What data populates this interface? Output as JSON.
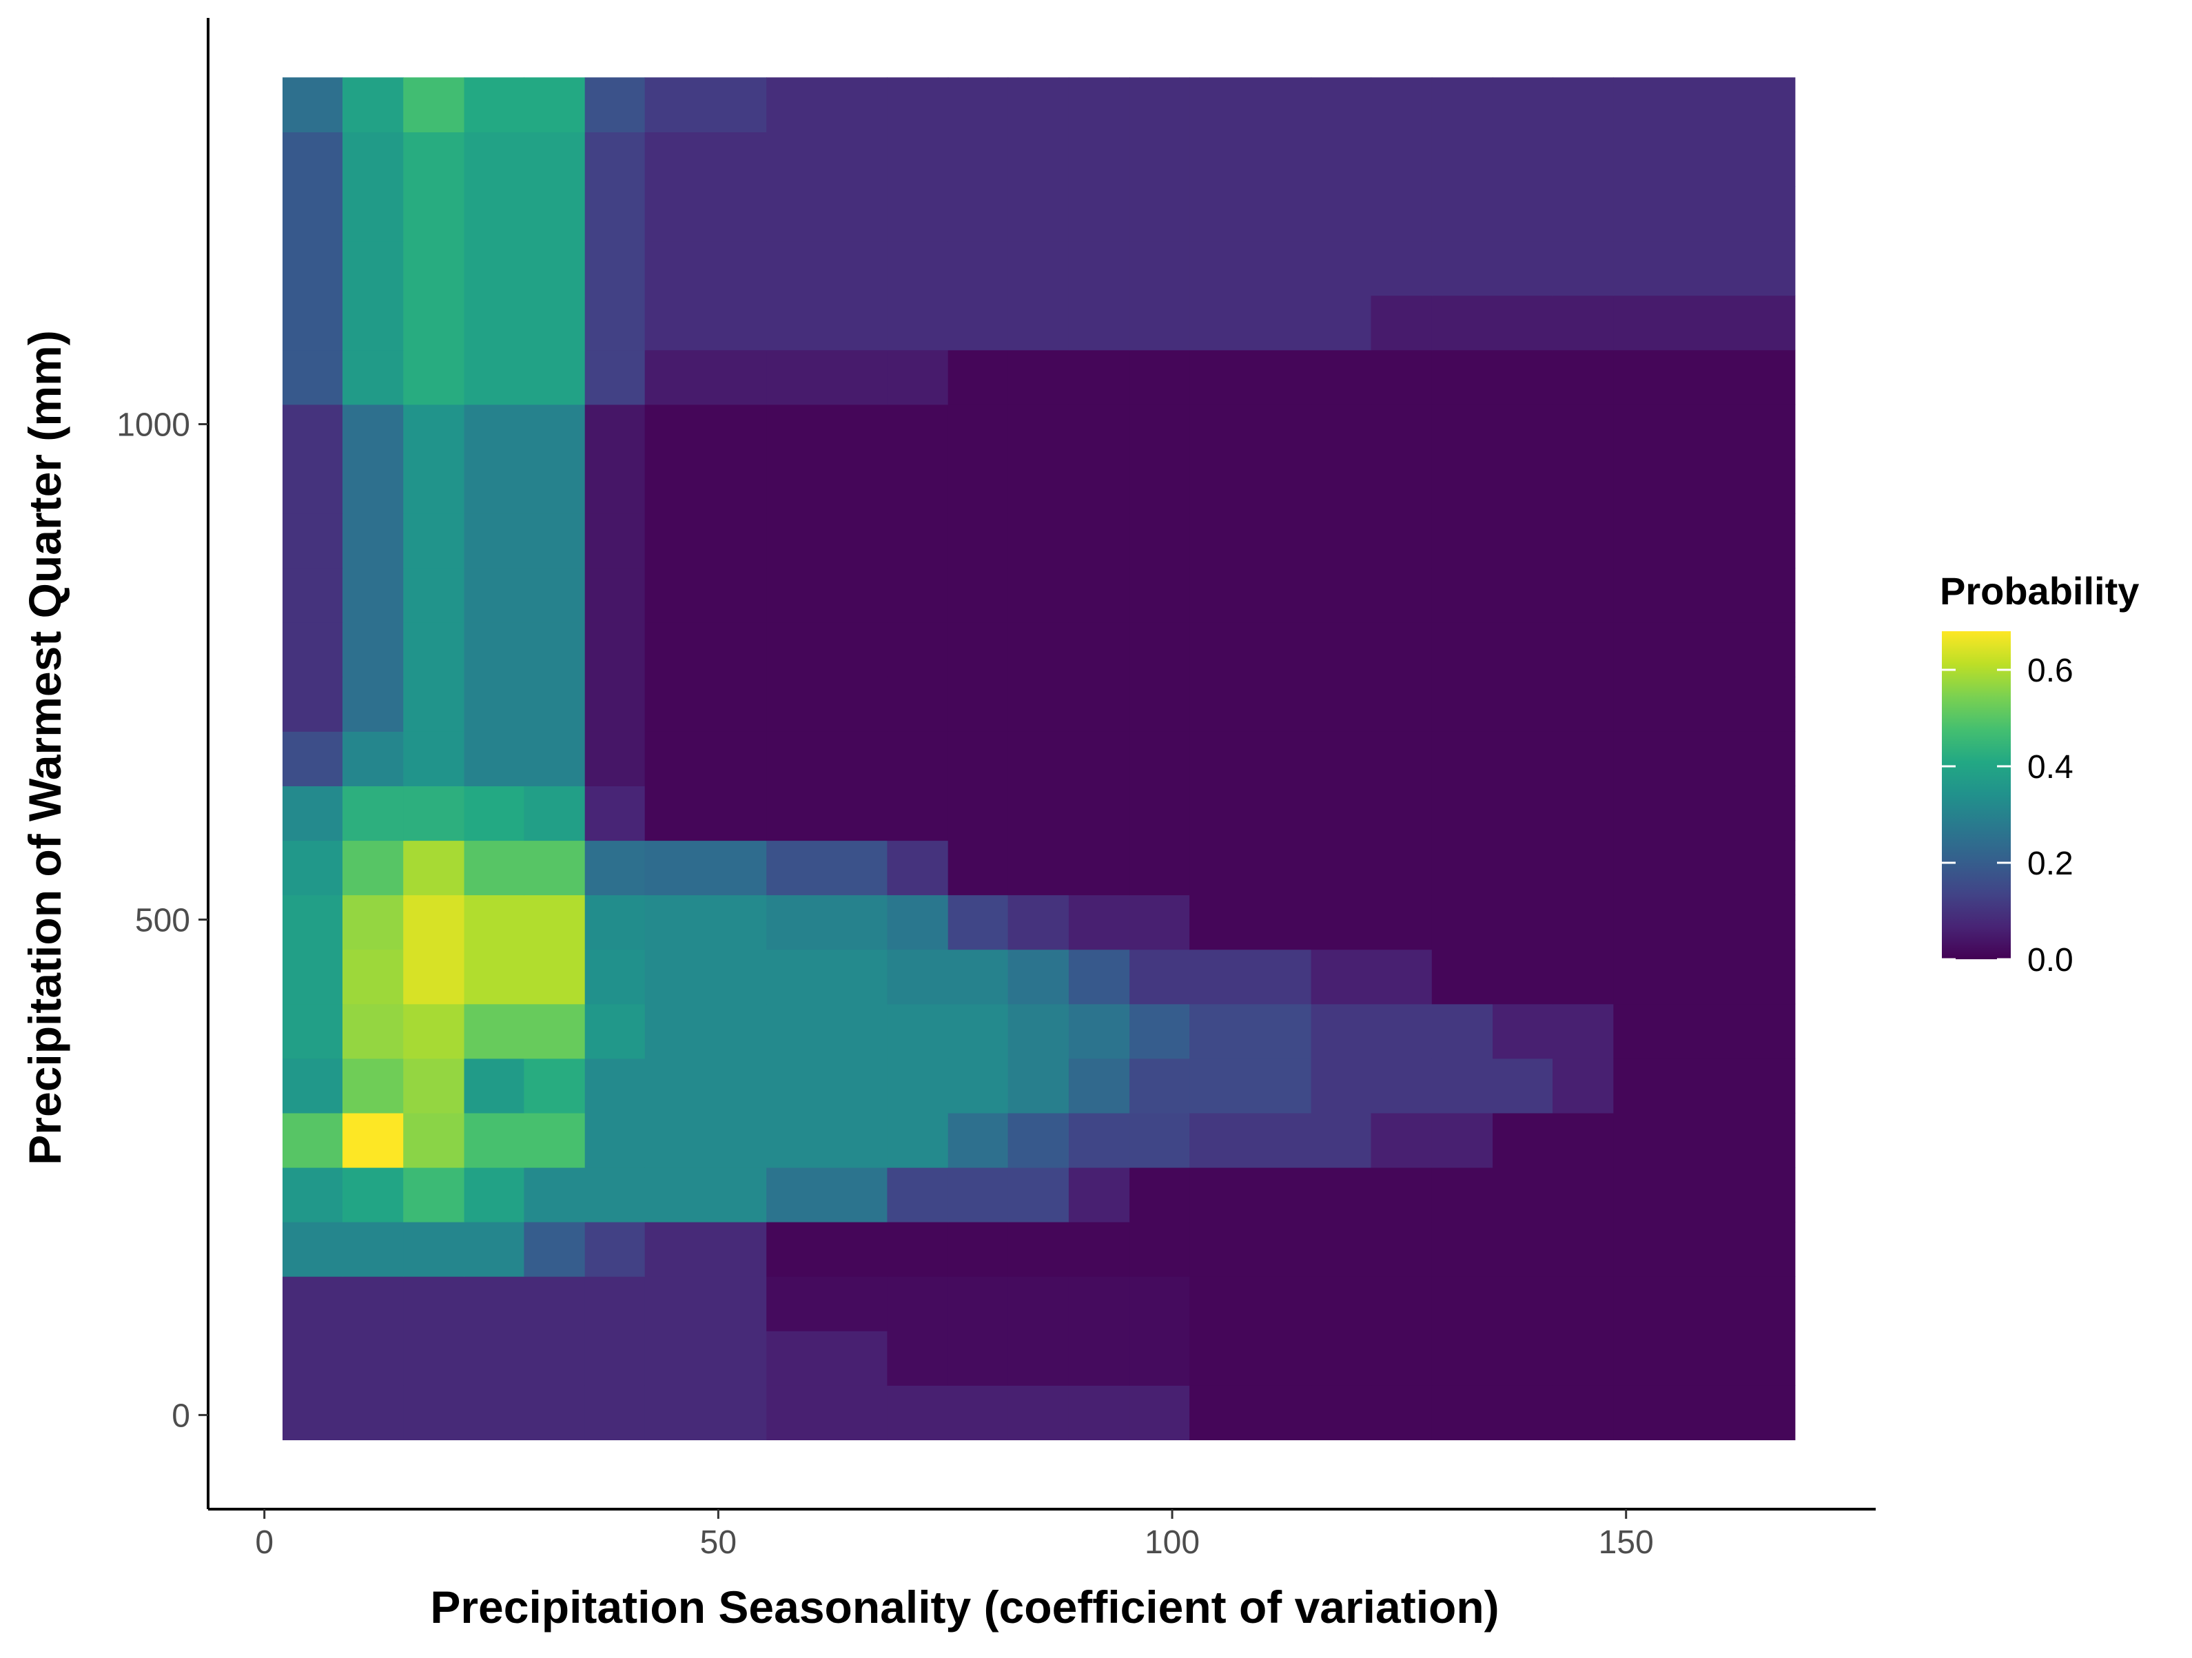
{
  "chart_data": {
    "type": "heatmap",
    "title": "",
    "xlabel": "Precipitation Seasonality (coefficient of variation)",
    "ylabel": "Precipitation of Warmest Quarter (mm)",
    "x_ticks": [
      0,
      50,
      100,
      150
    ],
    "y_ticks": [
      0,
      500,
      1000
    ],
    "xlim": [
      -6.2,
      177.5
    ],
    "ylim": [
      -95,
      1410
    ],
    "grid": false,
    "colorscale": "viridis",
    "legend": {
      "title": "Probability",
      "ticks": [
        0.0,
        0.2,
        0.4,
        0.6
      ],
      "tick_labels": [
        "0.0",
        "0.2",
        "0.4",
        "0.6"
      ],
      "min": 0.0,
      "max": 0.68,
      "position": "right"
    },
    "x_edges": [
      2.0,
      8.6,
      15.3,
      22.0,
      28.6,
      35.3,
      41.9,
      55.3,
      68.6,
      75.3,
      81.9,
      88.6,
      95.3,
      101.9,
      115.3,
      121.9,
      128.6,
      135.3,
      141.9,
      148.6,
      168.6
    ],
    "y_edges": [
      -25,
      30,
      85,
      140,
      195,
      250,
      305,
      360,
      415,
      470,
      525,
      580,
      635,
      690,
      745,
      800,
      855,
      910,
      965,
      1020,
      1075,
      1130,
      1185,
      1240,
      1295,
      1350
    ],
    "values": [
      [
        0.08,
        0.08,
        0.08,
        0.08,
        0.08,
        0.08,
        0.08,
        0.06,
        0.06,
        0.06,
        0.06,
        0.06,
        0.06,
        0.01,
        0.01,
        0.01,
        0.01,
        0.01,
        0.01,
        0.01
      ],
      [
        0.08,
        0.08,
        0.08,
        0.08,
        0.08,
        0.08,
        0.08,
        0.06,
        0.02,
        0.02,
        0.02,
        0.02,
        0.02,
        0.01,
        0.01,
        0.01,
        0.01,
        0.01,
        0.01,
        0.01
      ],
      [
        0.08,
        0.08,
        0.08,
        0.08,
        0.08,
        0.08,
        0.08,
        0.02,
        0.02,
        0.02,
        0.02,
        0.02,
        0.02,
        0.01,
        0.01,
        0.01,
        0.01,
        0.01,
        0.01,
        0.01
      ],
      [
        0.31,
        0.31,
        0.31,
        0.31,
        0.2,
        0.13,
        0.08,
        0.01,
        0.01,
        0.01,
        0.01,
        0.01,
        0.01,
        0.01,
        0.01,
        0.01,
        0.01,
        0.01,
        0.01,
        0.01
      ],
      [
        0.36,
        0.4,
        0.46,
        0.39,
        0.32,
        0.32,
        0.32,
        0.26,
        0.14,
        0.14,
        0.14,
        0.06,
        0.01,
        0.01,
        0.01,
        0.01,
        0.01,
        0.01,
        0.01,
        0.01
      ],
      [
        0.5,
        0.68,
        0.56,
        0.48,
        0.48,
        0.32,
        0.32,
        0.32,
        0.32,
        0.25,
        0.19,
        0.14,
        0.14,
        0.11,
        0.11,
        0.06,
        0.06,
        0.01,
        0.01,
        0.01
      ],
      [
        0.36,
        0.53,
        0.57,
        0.37,
        0.42,
        0.32,
        0.32,
        0.32,
        0.32,
        0.32,
        0.29,
        0.23,
        0.15,
        0.15,
        0.11,
        0.11,
        0.11,
        0.11,
        0.06,
        0.01
      ],
      [
        0.38,
        0.57,
        0.59,
        0.52,
        0.52,
        0.36,
        0.32,
        0.32,
        0.32,
        0.32,
        0.29,
        0.26,
        0.2,
        0.15,
        0.11,
        0.11,
        0.11,
        0.06,
        0.06,
        0.01
      ],
      [
        0.38,
        0.58,
        0.64,
        0.6,
        0.6,
        0.34,
        0.32,
        0.32,
        0.3,
        0.3,
        0.26,
        0.19,
        0.11,
        0.11,
        0.06,
        0.06,
        0.01,
        0.01,
        0.01,
        0.01
      ],
      [
        0.38,
        0.57,
        0.64,
        0.6,
        0.6,
        0.33,
        0.32,
        0.3,
        0.27,
        0.14,
        0.1,
        0.06,
        0.06,
        0.01,
        0.01,
        0.01,
        0.01,
        0.01,
        0.01,
        0.01
      ],
      [
        0.36,
        0.5,
        0.59,
        0.5,
        0.5,
        0.25,
        0.24,
        0.17,
        0.1,
        0.01,
        0.01,
        0.01,
        0.01,
        0.01,
        0.01,
        0.01,
        0.01,
        0.01,
        0.01,
        0.01
      ],
      [
        0.32,
        0.43,
        0.43,
        0.41,
        0.38,
        0.07,
        0.01,
        0.01,
        0.01,
        0.01,
        0.01,
        0.01,
        0.01,
        0.01,
        0.01,
        0.01,
        0.01,
        0.01,
        0.01,
        0.01
      ],
      [
        0.16,
        0.31,
        0.35,
        0.3,
        0.3,
        0.04,
        0.01,
        0.01,
        0.01,
        0.01,
        0.01,
        0.01,
        0.01,
        0.01,
        0.01,
        0.01,
        0.01,
        0.01,
        0.01,
        0.01
      ],
      [
        0.1,
        0.25,
        0.35,
        0.3,
        0.3,
        0.04,
        0.01,
        0.01,
        0.01,
        0.01,
        0.01,
        0.01,
        0.01,
        0.01,
        0.01,
        0.01,
        0.01,
        0.01,
        0.01,
        0.01
      ],
      [
        0.1,
        0.25,
        0.35,
        0.3,
        0.3,
        0.04,
        0.01,
        0.01,
        0.01,
        0.01,
        0.01,
        0.01,
        0.01,
        0.01,
        0.01,
        0.01,
        0.01,
        0.01,
        0.01,
        0.01
      ],
      [
        0.1,
        0.25,
        0.35,
        0.3,
        0.3,
        0.04,
        0.01,
        0.01,
        0.01,
        0.01,
        0.01,
        0.01,
        0.01,
        0.01,
        0.01,
        0.01,
        0.01,
        0.01,
        0.01,
        0.01
      ],
      [
        0.1,
        0.25,
        0.35,
        0.3,
        0.3,
        0.04,
        0.01,
        0.01,
        0.01,
        0.01,
        0.01,
        0.01,
        0.01,
        0.01,
        0.01,
        0.01,
        0.01,
        0.01,
        0.01,
        0.01
      ],
      [
        0.1,
        0.25,
        0.35,
        0.3,
        0.3,
        0.04,
        0.01,
        0.01,
        0.01,
        0.01,
        0.01,
        0.01,
        0.01,
        0.01,
        0.01,
        0.01,
        0.01,
        0.01,
        0.01,
        0.01
      ],
      [
        0.1,
        0.25,
        0.35,
        0.3,
        0.3,
        0.04,
        0.01,
        0.01,
        0.01,
        0.01,
        0.01,
        0.01,
        0.01,
        0.01,
        0.01,
        0.01,
        0.01,
        0.01,
        0.01,
        0.01
      ],
      [
        0.19,
        0.37,
        0.42,
        0.39,
        0.39,
        0.13,
        0.05,
        0.05,
        0.05,
        0.01,
        0.01,
        0.01,
        0.01,
        0.01,
        0.01,
        0.01,
        0.01,
        0.01,
        0.01,
        0.01
      ],
      [
        0.19,
        0.37,
        0.42,
        0.39,
        0.39,
        0.13,
        0.09,
        0.09,
        0.09,
        0.09,
        0.09,
        0.09,
        0.09,
        0.09,
        0.09,
        0.05,
        0.05,
        0.05,
        0.05,
        0.05
      ],
      [
        0.19,
        0.37,
        0.42,
        0.39,
        0.39,
        0.13,
        0.09,
        0.09,
        0.09,
        0.09,
        0.09,
        0.09,
        0.09,
        0.09,
        0.09,
        0.09,
        0.09,
        0.09,
        0.09,
        0.09
      ],
      [
        0.19,
        0.37,
        0.42,
        0.39,
        0.39,
        0.13,
        0.09,
        0.09,
        0.09,
        0.09,
        0.09,
        0.09,
        0.09,
        0.09,
        0.09,
        0.09,
        0.09,
        0.09,
        0.09,
        0.09
      ],
      [
        0.19,
        0.37,
        0.42,
        0.39,
        0.39,
        0.13,
        0.09,
        0.09,
        0.09,
        0.09,
        0.09,
        0.09,
        0.09,
        0.09,
        0.09,
        0.09,
        0.09,
        0.09,
        0.09,
        0.09
      ],
      [
        0.25,
        0.39,
        0.47,
        0.41,
        0.41,
        0.17,
        0.12,
        0.09,
        0.09,
        0.09,
        0.09,
        0.09,
        0.09,
        0.09,
        0.09,
        0.09,
        0.09,
        0.09,
        0.09,
        0.09
      ]
    ]
  }
}
